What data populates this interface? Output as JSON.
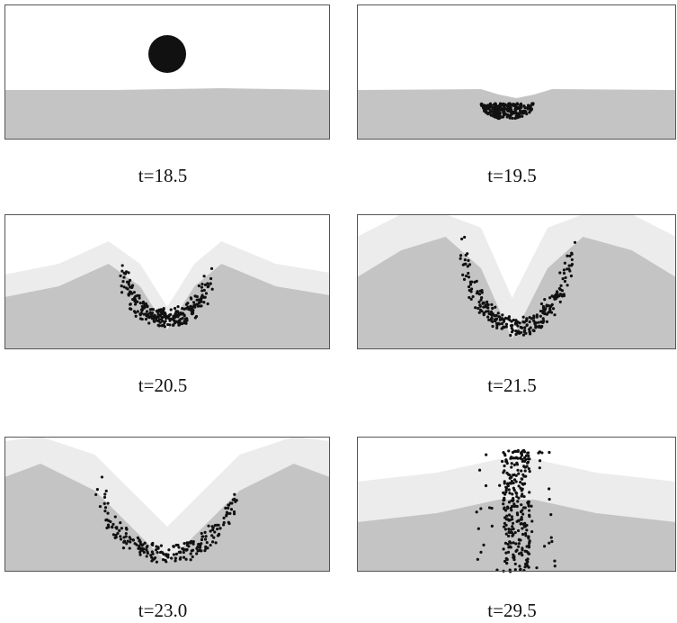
{
  "panels": [
    {
      "caption": "t=18.5"
    },
    {
      "caption": "t=19.5"
    },
    {
      "caption": "t=20.5"
    },
    {
      "caption": "t=21.5"
    },
    {
      "caption": "t=23.0"
    },
    {
      "caption": "t=29.5"
    }
  ]
}
